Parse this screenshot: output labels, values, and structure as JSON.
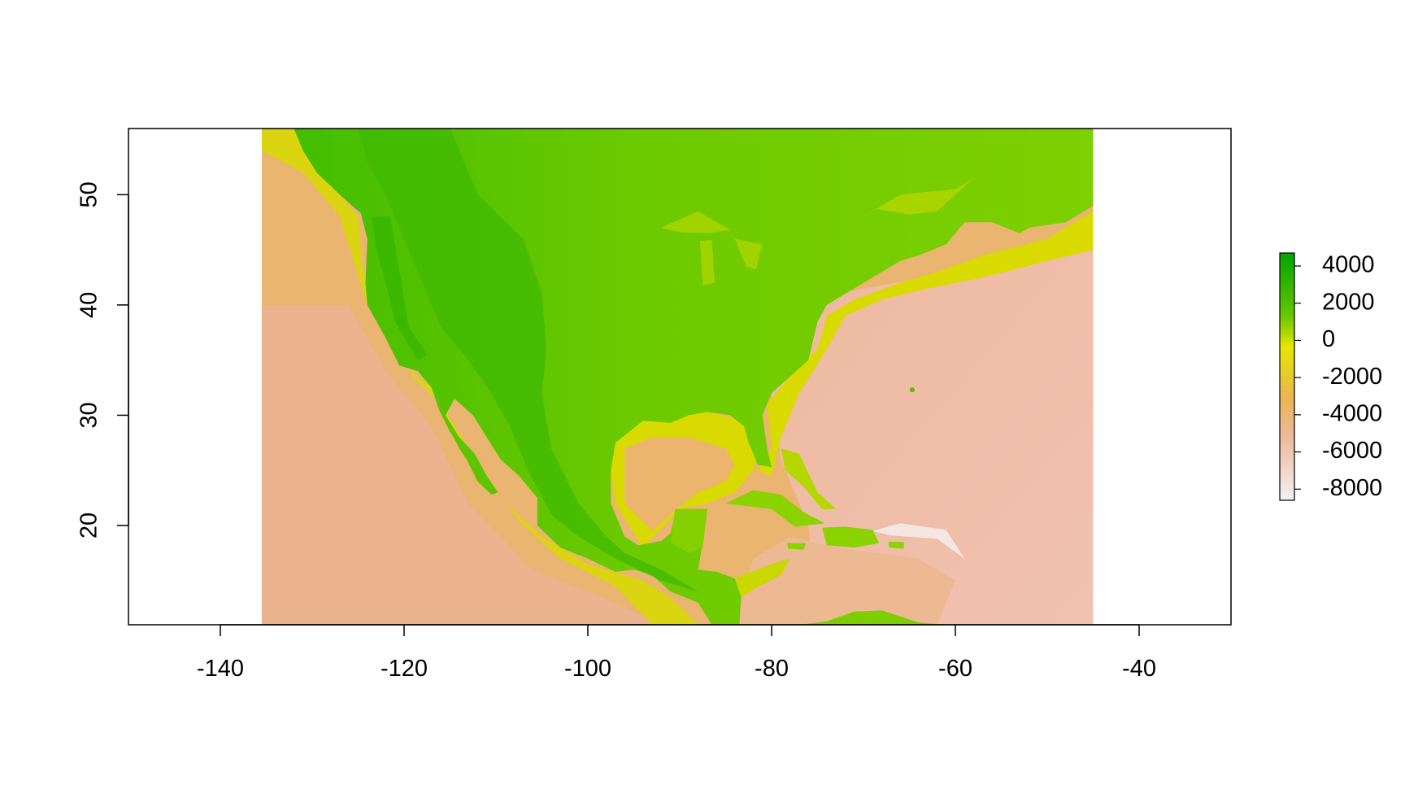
{
  "chart_data": {
    "type": "heatmap",
    "title": "",
    "xlabel": "",
    "ylabel": "",
    "xlim": [
      -150,
      -30
    ],
    "ylim": [
      11,
      56
    ],
    "raster_extent": {
      "xmin": -135.5,
      "xmax": -45,
      "ymin": 11,
      "ymax": 56
    },
    "x_ticks": [
      -140,
      -120,
      -100,
      -80,
      -60,
      -40
    ],
    "x_tick_labels": [
      "-140",
      "-120",
      "-100",
      "-80",
      "-60",
      "-40"
    ],
    "y_ticks": [
      20,
      30,
      40,
      50
    ],
    "y_tick_labels": [
      "20",
      "30",
      "40",
      "50"
    ],
    "grid": false,
    "legend": {
      "placement": "right",
      "zlim": [
        -8600,
        4700
      ],
      "ticks": [
        4000,
        2000,
        0,
        -2000,
        -4000,
        -6000,
        -8000
      ],
      "tick_labels": [
        "4000",
        "2000",
        "0",
        "-2000",
        "-4000",
        "-6000",
        "-8000"
      ],
      "colors": [
        "#F2F2F2",
        "#EEB99F",
        "#EAB64E",
        "#E6E600",
        "#63C600",
        "#00A600"
      ],
      "color_positions": [
        0,
        0.25,
        0.42,
        0.62,
        0.75,
        1
      ]
    }
  }
}
